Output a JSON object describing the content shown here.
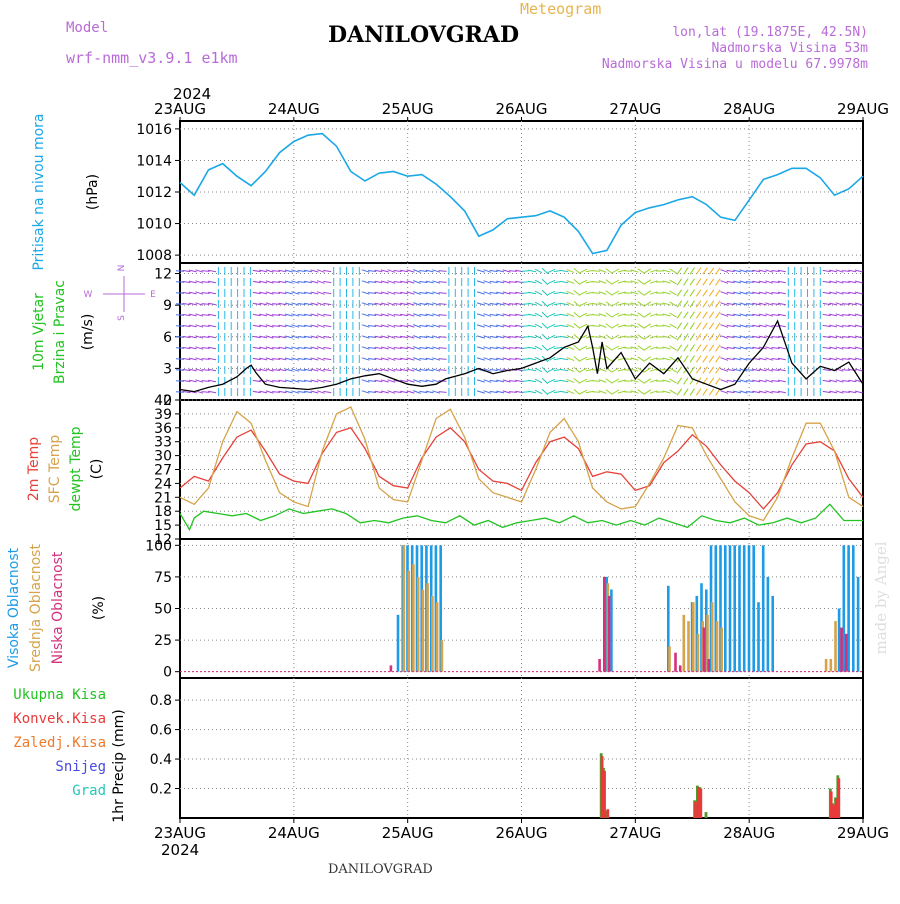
{
  "header": {
    "model_label": "Model",
    "model_name": "wrf-nmm_v3.9.1  e1km",
    "title": "DANILOVGRAD",
    "product": "Meteogram",
    "coords": "lon,lat (19.1875E, 42.5N)",
    "altitude": "Nadmorska Visina 53m",
    "model_altitude": "Nadmorska Visina u modelu 67.9978m",
    "footer_title": "DANILOVGRAD",
    "credit": "made by Angel"
  },
  "colors": {
    "pressure": "#1aa7e8",
    "wind_speed": "#000000",
    "temp_2m": "#e8413a",
    "temp_sfc": "#d6a34a",
    "dewpoint": "#22c322",
    "cloud_high": "#1e9be6",
    "cloud_mid": "#d6a34a",
    "cloud_low": "#d4317d",
    "precip_total": "#4f9a2a",
    "precip_conv": "#e83a3a",
    "label_purple": "#b86bd8",
    "label_orange": "#e8b450"
  },
  "time_axis": {
    "year": "2024",
    "ticks": [
      "23AUG",
      "24AUG",
      "25AUG",
      "26AUG",
      "27AUG",
      "28AUG",
      "29AUG"
    ]
  },
  "chart_data": [
    {
      "type": "line",
      "panel": "pressure",
      "ylabel_lines": [
        "Pritisak na nivou mora"
      ],
      "unit": "(hPa)",
      "ylim": [
        1007.5,
        1016.5
      ],
      "yticks": [
        1008,
        1010,
        1012,
        1014,
        1016
      ],
      "series": [
        {
          "name": "",
          "x": [
            0,
            3,
            6,
            9,
            12,
            15,
            18,
            21,
            24,
            27,
            30,
            33,
            36,
            39,
            42,
            45,
            48,
            51,
            54,
            57,
            60,
            63,
            66,
            69,
            72,
            75,
            78,
            81,
            84,
            87,
            90,
            93,
            96,
            99,
            102,
            105,
            108,
            111,
            114,
            117,
            120,
            123,
            126,
            129,
            132,
            135,
            138,
            141,
            144
          ],
          "values": [
            1012.6,
            1011.8,
            1013.4,
            1013.8,
            1013.0,
            1012.4,
            1013.3,
            1014.5,
            1015.2,
            1015.6,
            1015.7,
            1014.9,
            1013.3,
            1012.7,
            1013.2,
            1013.3,
            1013.0,
            1013.1,
            1012.5,
            1011.7,
            1010.8,
            1009.2,
            1009.6,
            1010.3,
            1010.4,
            1010.5,
            1010.8,
            1010.4,
            1009.5,
            1008.1,
            1008.3,
            1009.9,
            1010.7,
            1011.0,
            1011.2,
            1011.5,
            1011.7,
            1011.2,
            1010.4,
            1010.2,
            1011.5,
            1012.8,
            1013.1,
            1013.5,
            1013.5,
            1012.9,
            1011.8,
            1012.2,
            1013.0
          ]
        }
      ]
    },
    {
      "type": "line",
      "panel": "wind",
      "ylabel_lines": [
        "10m Vjetar",
        "Brzina i Pravac"
      ],
      "unit": "(m/s)",
      "compass": [
        "N",
        "W",
        "E",
        "S"
      ],
      "ylim": [
        0,
        13
      ],
      "yticks": [
        0,
        3,
        6,
        9,
        12
      ],
      "series": [
        {
          "name": "",
          "x": [
            0,
            3,
            6,
            9,
            12,
            14,
            15,
            16,
            18,
            21,
            24,
            27,
            30,
            33,
            36,
            39,
            42,
            45,
            48,
            51,
            54,
            56,
            60,
            63,
            66,
            69,
            72,
            75,
            78,
            81,
            84,
            86,
            87,
            88,
            89,
            90,
            93,
            96,
            99,
            102,
            105,
            108,
            111,
            114,
            117,
            120,
            123,
            126,
            129,
            132,
            135,
            138,
            141,
            144
          ],
          "values": [
            1.0,
            0.8,
            1.2,
            1.5,
            2.2,
            3.0,
            3.3,
            2.6,
            1.5,
            1.2,
            1.1,
            1.0,
            1.2,
            1.5,
            2.0,
            2.3,
            2.5,
            2.0,
            1.5,
            1.3,
            1.5,
            2.0,
            2.5,
            3.0,
            2.5,
            2.8,
            3.0,
            3.5,
            4.0,
            5.0,
            5.5,
            7.0,
            5.0,
            2.5,
            5.5,
            3.0,
            4.5,
            2.0,
            3.5,
            2.5,
            4.0,
            2.0,
            1.5,
            1.0,
            1.5,
            3.5,
            5.0,
            7.5,
            3.5,
            2.0,
            3.2,
            2.8,
            3.6,
            1.5
          ]
        }
      ]
    },
    {
      "type": "line",
      "panel": "temperature",
      "ylabel_lines": [
        "2m Temp",
        "SFC Temp",
        "dewpt Temp"
      ],
      "unit": "(C)",
      "ylim": [
        12,
        42
      ],
      "yticks": [
        12,
        15,
        18,
        21,
        24,
        27,
        30,
        33,
        36,
        39,
        42
      ],
      "series": [
        {
          "name": "2m Temp",
          "x": [
            0,
            3,
            6,
            9,
            12,
            15,
            18,
            21,
            24,
            27,
            30,
            33,
            36,
            39,
            42,
            45,
            48,
            51,
            54,
            57,
            60,
            63,
            66,
            69,
            72,
            75,
            78,
            81,
            84,
            87,
            90,
            93,
            96,
            99,
            102,
            105,
            108,
            111,
            114,
            117,
            120,
            123,
            126,
            129,
            132,
            135,
            138,
            141,
            144
          ],
          "values": [
            23.0,
            25.5,
            24.5,
            29.5,
            34.0,
            35.5,
            31.0,
            26.0,
            24.5,
            24.0,
            30.5,
            35.0,
            36.0,
            31.5,
            25.5,
            23.5,
            23.0,
            29.5,
            34.0,
            36.0,
            33.0,
            27.0,
            24.5,
            24.0,
            22.5,
            28.5,
            33.0,
            34.0,
            31.5,
            25.5,
            26.5,
            26.0,
            22.5,
            23.5,
            28.5,
            31.0,
            34.5,
            32.0,
            28.0,
            24.5,
            22.0,
            18.5,
            22.0,
            28.0,
            32.5,
            33.0,
            31.0,
            25.0,
            21.0
          ]
        },
        {
          "name": "SFC Temp",
          "x": [
            0,
            3,
            6,
            9,
            12,
            15,
            18,
            21,
            24,
            27,
            30,
            33,
            36,
            39,
            42,
            45,
            48,
            51,
            54,
            57,
            60,
            63,
            66,
            69,
            72,
            75,
            78,
            81,
            84,
            87,
            90,
            93,
            96,
            99,
            102,
            105,
            108,
            111,
            114,
            117,
            120,
            123,
            126,
            129,
            132,
            135,
            138,
            141,
            144
          ],
          "values": [
            21.0,
            19.5,
            23.0,
            33.0,
            39.5,
            37.0,
            29.0,
            22.0,
            20.0,
            19.0,
            31.0,
            39.0,
            40.5,
            33.5,
            23.0,
            20.5,
            20.0,
            29.0,
            38.0,
            40.0,
            34.0,
            25.0,
            22.0,
            21.0,
            20.0,
            27.0,
            35.0,
            38.0,
            33.0,
            23.0,
            20.0,
            18.5,
            19.0,
            24.0,
            29.5,
            36.5,
            36.0,
            30.0,
            25.0,
            20.0,
            17.0,
            16.0,
            21.0,
            29.5,
            37.0,
            37.0,
            31.0,
            21.0,
            19.0
          ]
        },
        {
          "name": "dewpt Temp",
          "x": [
            0,
            2,
            3,
            5,
            8,
            11,
            14,
            17,
            20,
            23,
            26,
            29,
            32,
            35,
            38,
            41,
            44,
            47,
            50,
            53,
            56,
            59,
            62,
            65,
            68,
            71,
            74,
            77,
            80,
            83,
            86,
            89,
            92,
            95,
            98,
            101,
            104,
            107,
            110,
            113,
            116,
            119,
            122,
            125,
            128,
            131,
            134,
            137,
            140,
            144
          ],
          "values": [
            17.5,
            14.0,
            16.5,
            18.0,
            17.5,
            17.0,
            17.5,
            16.0,
            17.0,
            18.5,
            17.5,
            18.0,
            18.5,
            17.5,
            15.5,
            16.0,
            15.5,
            16.5,
            17.0,
            16.0,
            15.5,
            17.0,
            15.0,
            16.0,
            14.5,
            15.5,
            16.0,
            16.5,
            15.5,
            17.0,
            15.5,
            16.0,
            15.0,
            16.0,
            15.0,
            16.5,
            15.5,
            14.5,
            17.0,
            16.0,
            15.5,
            16.5,
            15.0,
            15.5,
            16.5,
            15.5,
            16.5,
            19.5,
            16.0,
            16.0
          ]
        }
      ]
    },
    {
      "type": "bar",
      "panel": "clouds",
      "ylabel_lines": [
        "Visoka Oblacnost",
        "Srednja Oblacnost",
        "Niska Oblacnost"
      ],
      "unit": "(%)",
      "ylim": [
        -5,
        105
      ],
      "yticks": [
        0,
        25,
        50,
        75,
        100
      ],
      "series": [
        {
          "name": "Visoka Oblacnost",
          "x": [
            46,
            47,
            48,
            49,
            50,
            51,
            52,
            53,
            54,
            55,
            90,
            91,
            103,
            108,
            109,
            110,
            111,
            112,
            113,
            114,
            115,
            116,
            117,
            118,
            119,
            120,
            121,
            122,
            123,
            124,
            125,
            139,
            140,
            141,
            142,
            143
          ],
          "values": [
            45,
            100,
            100,
            100,
            100,
            100,
            100,
            100,
            100,
            100,
            75,
            65,
            68,
            55,
            60,
            70,
            65,
            100,
            100,
            100,
            100,
            100,
            100,
            100,
            100,
            100,
            100,
            55,
            100,
            75,
            60,
            50,
            100,
            100,
            100,
            75
          ]
        },
        {
          "name": "Srednja Oblacnost",
          "x": [
            47,
            48,
            49,
            50,
            51,
            52,
            53,
            54,
            55,
            90,
            103,
            106,
            107,
            108,
            109,
            110,
            111,
            112,
            113,
            114,
            136,
            137,
            138
          ],
          "values": [
            100,
            80,
            85,
            75,
            65,
            70,
            60,
            55,
            25,
            70,
            20,
            45,
            40,
            55,
            30,
            40,
            45,
            55,
            40,
            35,
            10,
            10,
            40
          ]
        },
        {
          "name": "Niska Oblacnost",
          "x": [
            44,
            88,
            89,
            90,
            104,
            105,
            110,
            111,
            139,
            140
          ],
          "values": [
            5,
            10,
            75,
            60,
            15,
            5,
            35,
            10,
            35,
            30
          ]
        }
      ]
    },
    {
      "type": "bar",
      "panel": "precip",
      "ylabel_lines": [
        "Ukupna Kisa",
        "Konvek.Kisa",
        "Zaledj.Kisa",
        "Snijeg",
        "Grad"
      ],
      "unit_lines": [
        "1hr Precip",
        "(mm)"
      ],
      "ylim": [
        0,
        0.95
      ],
      "yticks": [
        0.2,
        0.4,
        0.6,
        0.8
      ],
      "series": [
        {
          "name": "Ukupna Kisa",
          "x": [
            88.5,
            89,
            89.7,
            108.2,
            108.8,
            109.3,
            110.6,
            136.8,
            137.3,
            137.9,
            138.4,
            139.0
          ],
          "values": [
            0.44,
            0.34,
            0.05,
            0.12,
            0.22,
            0.21,
            0.04,
            0.2,
            0.1,
            0.14,
            0.29,
            0.0
          ]
        },
        {
          "name": "Konvek.Kisa",
          "x": [
            88.7,
            89.2,
            89.9,
            108.4,
            109.0,
            109.5,
            137.0,
            137.5,
            138.1,
            138.6
          ],
          "values": [
            0.42,
            0.32,
            0.06,
            0.11,
            0.21,
            0.2,
            0.18,
            0.09,
            0.13,
            0.27
          ]
        }
      ]
    }
  ]
}
